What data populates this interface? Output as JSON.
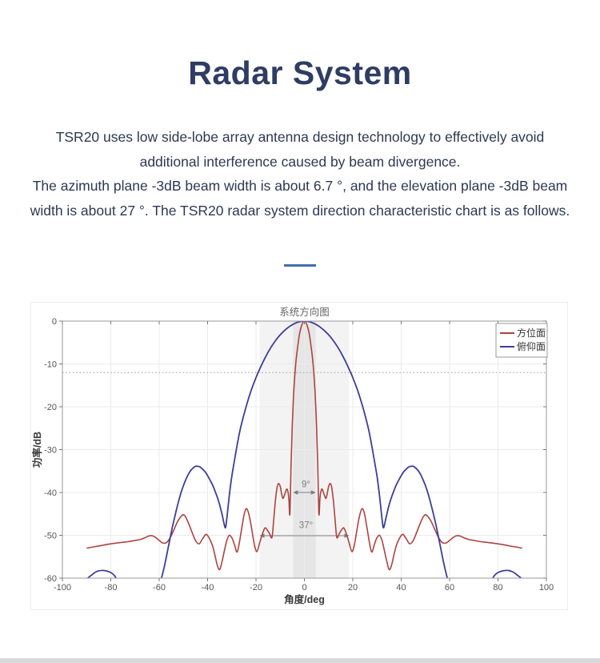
{
  "page": {
    "title": "Radar System",
    "paragraph_lines": [
      "TSR20 uses low side-lobe array antenna design technology to effectively avoid",
      "additional interference caused by beam divergence.",
      "The azimuth plane -3dB beam width is about 6.7 °, and the elevation plane -3dB beam",
      "width is about 27 °. The TSR20 radar system direction characteristic chart is as follows."
    ],
    "divider_color": "#3f72a8",
    "bottom_bar_color": "#d8d8dd"
  },
  "chart_data": {
    "type": "line",
    "title": "系统方向图",
    "xlabel": "角度/deg",
    "ylabel": "功率/dB",
    "xlim": [
      -100,
      100
    ],
    "ylim": [
      -60,
      0
    ],
    "xticks": [
      -100,
      -80,
      -60,
      -40,
      -20,
      0,
      20,
      40,
      60,
      80,
      100
    ],
    "yticks": [
      0,
      -10,
      -20,
      -30,
      -40,
      -50,
      -60
    ],
    "grid": true,
    "grid_color": "#ebebeb",
    "box_color": "#9a9a9a",
    "tick_label_color": "#555555",
    "axis_label_color": "#3a3a3a",
    "title_color": "#666666",
    "reference_line": {
      "y_db": -12,
      "style": "dotted",
      "color": "#9b9b9b"
    },
    "bands": [
      {
        "from_deg": -18.5,
        "to_deg": 18.5,
        "color": "#f3f3f3"
      },
      {
        "from_deg": -4.7,
        "to_deg": 4.7,
        "color": "#e6e6e6"
      }
    ],
    "annotations": [
      {
        "label": "9°",
        "from_deg": -4.7,
        "to_deg": 4.7,
        "arrow_y_db": -40.0,
        "label_y_db": -38.8,
        "color": "#7d7d7d"
      },
      {
        "label": "37°",
        "from_deg": -18.5,
        "to_deg": 18.5,
        "arrow_y_db": -50.1,
        "label_y_db": -48.3,
        "color": "#7d7d7d"
      }
    ],
    "legend": {
      "position": "top-right",
      "border_color": "#999999"
    },
    "series": [
      {
        "name": "方位面",
        "color": "#ae4340",
        "width": 1.6,
        "points": [
          [
            -90,
            -53
          ],
          [
            -87,
            -52.7
          ],
          [
            -84,
            -52.4
          ],
          [
            -80,
            -52
          ],
          [
            -76,
            -51.7
          ],
          [
            -73,
            -51.5
          ],
          [
            -70,
            -51.2
          ],
          [
            -68,
            -51
          ],
          [
            -66,
            -50.6
          ],
          [
            -64.5,
            -50.2
          ],
          [
            -63,
            -50.1
          ],
          [
            -61.5,
            -50.5
          ],
          [
            -60,
            -51.2
          ],
          [
            -58.5,
            -51.8
          ],
          [
            -57,
            -51.7
          ],
          [
            -55.5,
            -50.6
          ],
          [
            -54,
            -48.8
          ],
          [
            -52.5,
            -46.9
          ],
          [
            -51,
            -45.6
          ],
          [
            -50,
            -45.2
          ],
          [
            -49,
            -45.8
          ],
          [
            -47.5,
            -47.7
          ],
          [
            -46,
            -49.9
          ],
          [
            -44.8,
            -51.4
          ],
          [
            -43.5,
            -52
          ],
          [
            -42.5,
            -51.2
          ],
          [
            -41.5,
            -50.3
          ],
          [
            -40.5,
            -49.8
          ],
          [
            -39.2,
            -50.8
          ],
          [
            -38,
            -52.4
          ],
          [
            -37,
            -54.6
          ],
          [
            -36,
            -57
          ],
          [
            -35,
            -58
          ],
          [
            -34,
            -56
          ],
          [
            -33,
            -53.4
          ],
          [
            -32,
            -51.1
          ],
          [
            -31,
            -50
          ],
          [
            -29.8,
            -50.8
          ],
          [
            -28.8,
            -52.4
          ],
          [
            -27.8,
            -53.9
          ],
          [
            -26.8,
            -51.5
          ],
          [
            -25.8,
            -48
          ],
          [
            -24.8,
            -44.9
          ],
          [
            -23.8,
            -43.8
          ],
          [
            -22.6,
            -45.9
          ],
          [
            -21.6,
            -49.2
          ],
          [
            -20.6,
            -52.4
          ],
          [
            -19.6,
            -53.8
          ],
          [
            -18.4,
            -51.6
          ],
          [
            -17.3,
            -49.6
          ],
          [
            -16.3,
            -48.3
          ],
          [
            -15.4,
            -48.7
          ],
          [
            -14.4,
            -49.6
          ],
          [
            -13.4,
            -50.5
          ],
          [
            -12.7,
            -46.5
          ],
          [
            -12,
            -42
          ],
          [
            -11.3,
            -38.9
          ],
          [
            -10.7,
            -37.9
          ],
          [
            -10,
            -38.6
          ],
          [
            -9.4,
            -40.4
          ],
          [
            -8.9,
            -41.4
          ],
          [
            -8.3,
            -40.7
          ],
          [
            -7.8,
            -39.9
          ],
          [
            -7.3,
            -39.2
          ],
          [
            -6.8,
            -39.8
          ],
          [
            -6.4,
            -41.5
          ],
          [
            -6,
            -45
          ],
          [
            -5.5,
            -33
          ],
          [
            -5,
            -24
          ],
          [
            -4.5,
            -17.5
          ],
          [
            -4,
            -13
          ],
          [
            -3.5,
            -9.5
          ],
          [
            -3,
            -7
          ],
          [
            -2,
            -3
          ],
          [
            -1,
            -0.8
          ],
          [
            0,
            0
          ],
          [
            1,
            -0.8
          ],
          [
            2,
            -3
          ],
          [
            3,
            -7
          ],
          [
            3.5,
            -9.5
          ],
          [
            4,
            -13
          ],
          [
            4.5,
            -17.5
          ],
          [
            5,
            -24
          ],
          [
            5.5,
            -33
          ],
          [
            6,
            -45
          ],
          [
            6.4,
            -41.5
          ],
          [
            6.8,
            -39.8
          ],
          [
            7.3,
            -39.2
          ],
          [
            7.8,
            -39.9
          ],
          [
            8.3,
            -40.7
          ],
          [
            8.9,
            -41.4
          ],
          [
            9.4,
            -40.4
          ],
          [
            10,
            -38.6
          ],
          [
            10.7,
            -37.9
          ],
          [
            11.3,
            -38.9
          ],
          [
            12,
            -42
          ],
          [
            12.7,
            -46.5
          ],
          [
            13.4,
            -50.5
          ],
          [
            14.4,
            -49.6
          ],
          [
            15.4,
            -48.7
          ],
          [
            16.3,
            -48.3
          ],
          [
            17.3,
            -49.6
          ],
          [
            18.4,
            -51.6
          ],
          [
            19.6,
            -53.8
          ],
          [
            20.6,
            -52.4
          ],
          [
            21.6,
            -49.2
          ],
          [
            22.6,
            -45.9
          ],
          [
            23.8,
            -43.8
          ],
          [
            24.8,
            -44.9
          ],
          [
            25.8,
            -48
          ],
          [
            26.8,
            -51.5
          ],
          [
            27.8,
            -53.9
          ],
          [
            28.8,
            -52.4
          ],
          [
            29.8,
            -50.8
          ],
          [
            31,
            -50
          ],
          [
            32,
            -51.1
          ],
          [
            33,
            -53.4
          ],
          [
            34,
            -56
          ],
          [
            35,
            -58
          ],
          [
            36,
            -57
          ],
          [
            37,
            -54.6
          ],
          [
            38,
            -52.4
          ],
          [
            39.2,
            -50.8
          ],
          [
            40.5,
            -49.8
          ],
          [
            41.5,
            -50.3
          ],
          [
            42.5,
            -51.2
          ],
          [
            43.5,
            -52
          ],
          [
            44.8,
            -51.4
          ],
          [
            46,
            -49.9
          ],
          [
            47.5,
            -47.7
          ],
          [
            49,
            -45.8
          ],
          [
            50,
            -45.2
          ],
          [
            51,
            -45.6
          ],
          [
            52.5,
            -46.9
          ],
          [
            54,
            -48.8
          ],
          [
            55.5,
            -50.6
          ],
          [
            57,
            -51.7
          ],
          [
            58.5,
            -51.8
          ],
          [
            60,
            -51.2
          ],
          [
            61.5,
            -50.5
          ],
          [
            63,
            -50.1
          ],
          [
            64.5,
            -50.2
          ],
          [
            66,
            -50.6
          ],
          [
            68,
            -51
          ],
          [
            70,
            -51.2
          ],
          [
            73,
            -51.5
          ],
          [
            76,
            -51.7
          ],
          [
            80,
            -52
          ],
          [
            84,
            -52.4
          ],
          [
            87,
            -52.7
          ],
          [
            90,
            -53
          ]
        ]
      },
      {
        "name": "俯仰面",
        "color": "#3c3e99",
        "width": 1.8,
        "points": [
          [
            -90,
            -60.2
          ],
          [
            -88,
            -59.3
          ],
          [
            -86,
            -58.5
          ],
          [
            -84,
            -58.2
          ],
          [
            -82,
            -58.3
          ],
          [
            -80,
            -58.7
          ],
          [
            -78.5,
            -59.4
          ],
          [
            -77.5,
            -60.5
          ],
          [
            -76,
            -63.5
          ],
          [
            -74,
            -68
          ],
          [
            -71,
            -73
          ],
          [
            -68,
            -74
          ],
          [
            -65,
            -71
          ],
          [
            -62,
            -66
          ],
          [
            -60,
            -62
          ],
          [
            -59,
            -59.9
          ],
          [
            -58,
            -57.6
          ],
          [
            -57,
            -54.9
          ],
          [
            -56,
            -52.1
          ],
          [
            -55,
            -49.3
          ],
          [
            -54,
            -46.7
          ],
          [
            -53,
            -44.3
          ],
          [
            -52,
            -42.1
          ],
          [
            -51,
            -40.1
          ],
          [
            -50,
            -38.4
          ],
          [
            -49,
            -37
          ],
          [
            -48,
            -35.8
          ],
          [
            -47,
            -34.9
          ],
          [
            -46,
            -34.3
          ],
          [
            -45,
            -33.9
          ],
          [
            -44,
            -33.9
          ],
          [
            -43,
            -34.1
          ],
          [
            -42,
            -34.6
          ],
          [
            -41,
            -35.2
          ],
          [
            -40,
            -36.1
          ],
          [
            -39,
            -37.1
          ],
          [
            -38,
            -38.2
          ],
          [
            -37,
            -39.6
          ],
          [
            -36,
            -41.1
          ],
          [
            -35,
            -42.9
          ],
          [
            -34,
            -45.2
          ],
          [
            -33.2,
            -47.3
          ],
          [
            -32.6,
            -48.2
          ],
          [
            -32,
            -45.8
          ],
          [
            -31,
            -40.6
          ],
          [
            -30,
            -36.2
          ],
          [
            -29,
            -32.8
          ],
          [
            -28,
            -29.6
          ],
          [
            -27,
            -26.6
          ],
          [
            -26,
            -24
          ],
          [
            -24,
            -19.8
          ],
          [
            -22,
            -16.2
          ],
          [
            -20,
            -13.2
          ],
          [
            -18,
            -10.6
          ],
          [
            -16,
            -8.3
          ],
          [
            -14,
            -6.3
          ],
          [
            -12,
            -4.6
          ],
          [
            -10,
            -3.2
          ],
          [
            -8,
            -2.1
          ],
          [
            -6,
            -1.2
          ],
          [
            -4,
            -0.55
          ],
          [
            -2,
            -0.15
          ],
          [
            0,
            0
          ],
          [
            2,
            -0.15
          ],
          [
            4,
            -0.55
          ],
          [
            6,
            -1.2
          ],
          [
            8,
            -2.1
          ],
          [
            10,
            -3.2
          ],
          [
            12,
            -4.6
          ],
          [
            14,
            -6.3
          ],
          [
            16,
            -8.3
          ],
          [
            18,
            -10.6
          ],
          [
            20,
            -13.2
          ],
          [
            22,
            -16.2
          ],
          [
            24,
            -19.8
          ],
          [
            26,
            -24
          ],
          [
            27,
            -26.6
          ],
          [
            28,
            -29.6
          ],
          [
            29,
            -32.8
          ],
          [
            30,
            -36.2
          ],
          [
            31,
            -40.6
          ],
          [
            32,
            -45.8
          ],
          [
            32.6,
            -48.2
          ],
          [
            33.2,
            -47.3
          ],
          [
            34,
            -45.2
          ],
          [
            35,
            -42.9
          ],
          [
            36,
            -41.1
          ],
          [
            37,
            -39.6
          ],
          [
            38,
            -38.2
          ],
          [
            39,
            -37.1
          ],
          [
            40,
            -36.1
          ],
          [
            41,
            -35.2
          ],
          [
            42,
            -34.6
          ],
          [
            43,
            -34.1
          ],
          [
            44,
            -33.9
          ],
          [
            45,
            -33.9
          ],
          [
            46,
            -34.3
          ],
          [
            47,
            -34.9
          ],
          [
            48,
            -35.8
          ],
          [
            49,
            -37
          ],
          [
            50,
            -38.4
          ],
          [
            51,
            -40.1
          ],
          [
            52,
            -42.1
          ],
          [
            53,
            -44.3
          ],
          [
            54,
            -46.7
          ],
          [
            55,
            -49.3
          ],
          [
            56,
            -52.1
          ],
          [
            57,
            -54.9
          ],
          [
            58,
            -57.6
          ],
          [
            59,
            -59.9
          ],
          [
            60,
            -62
          ],
          [
            62,
            -66
          ],
          [
            65,
            -71
          ],
          [
            68,
            -74
          ],
          [
            71,
            -73
          ],
          [
            74,
            -68
          ],
          [
            76,
            -63.5
          ],
          [
            77.5,
            -60.5
          ],
          [
            78.5,
            -59.4
          ],
          [
            80,
            -58.7
          ],
          [
            82,
            -58.3
          ],
          [
            84,
            -58.2
          ],
          [
            86,
            -58.5
          ],
          [
            88,
            -59.3
          ],
          [
            90,
            -60.2
          ]
        ]
      }
    ]
  }
}
